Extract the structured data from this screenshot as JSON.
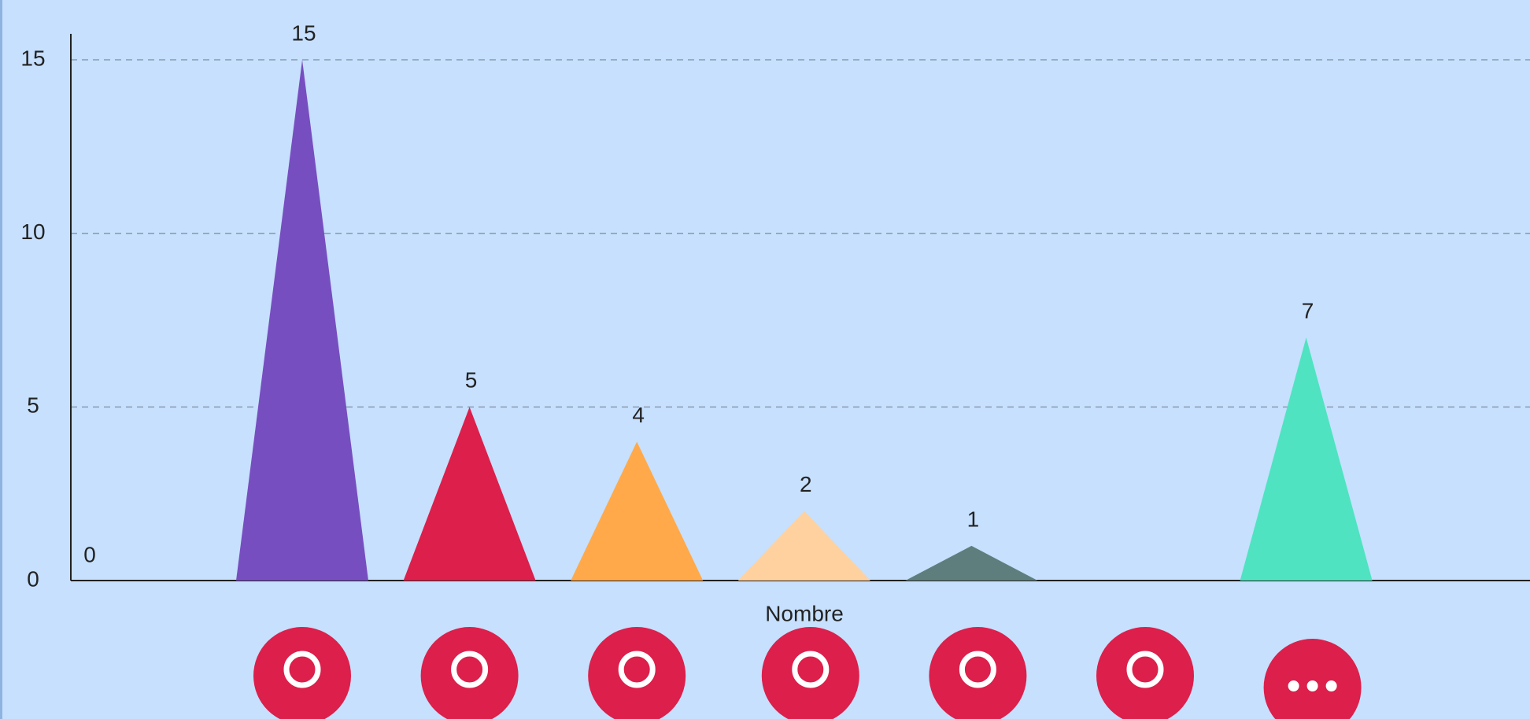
{
  "chart_data": {
    "type": "bar",
    "x_label": "Nombre",
    "categories": [
      null,
      null,
      null,
      null,
      null,
      null,
      null
    ],
    "values": [
      15,
      5,
      4,
      2,
      1,
      0,
      7
    ],
    "colors": [
      "#774ec0",
      "#dc1f4b",
      "#ffa94a",
      "#ffd19e",
      "#5e7e7e",
      "#9e9e9e",
      "#4fe3c1"
    ],
    "ylim": [
      0,
      15
    ],
    "yticks": [
      0,
      5,
      10,
      15
    ],
    "grid": true
  }
}
